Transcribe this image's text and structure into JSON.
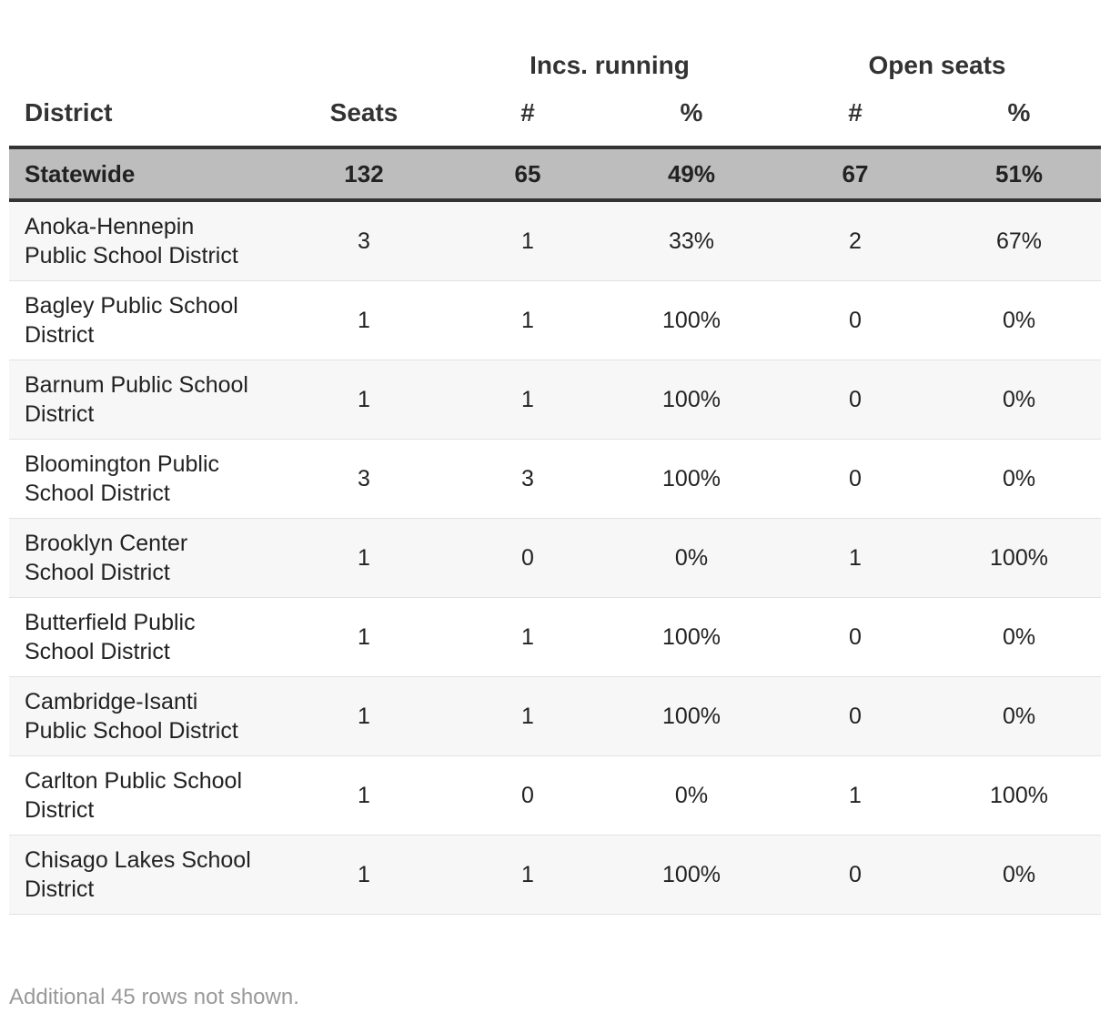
{
  "table": {
    "group_headers": [
      "Incs. running",
      "Open seats"
    ],
    "columns": [
      "District",
      "Seats",
      "#",
      "%",
      "#",
      "%"
    ],
    "summary": [
      "Statewide",
      "132",
      "65",
      "49%",
      "67",
      "51%"
    ],
    "rows": [
      [
        "Anoka-Hennepin Public School District",
        "3",
        "1",
        "33%",
        "2",
        "67%"
      ],
      [
        "Bagley Public School District",
        "1",
        "1",
        "100%",
        "0",
        "0%"
      ],
      [
        "Barnum Public School District",
        "1",
        "1",
        "100%",
        "0",
        "0%"
      ],
      [
        "Bloomington Public School District",
        "3",
        "3",
        "100%",
        "0",
        "0%"
      ],
      [
        "Brooklyn Center School District",
        "1",
        "0",
        "0%",
        "1",
        "100%"
      ],
      [
        "Butterfield Public School District",
        "1",
        "1",
        "100%",
        "0",
        "0%"
      ],
      [
        "Cambridge-Isanti Public School District",
        "1",
        "1",
        "100%",
        "0",
        "0%"
      ],
      [
        "Carlton Public School District",
        "1",
        "0",
        "0%",
        "1",
        "100%"
      ],
      [
        "Chisago Lakes School District",
        "1",
        "1",
        "100%",
        "0",
        "0%"
      ]
    ],
    "footnote": "Additional 45 rows not shown."
  }
}
